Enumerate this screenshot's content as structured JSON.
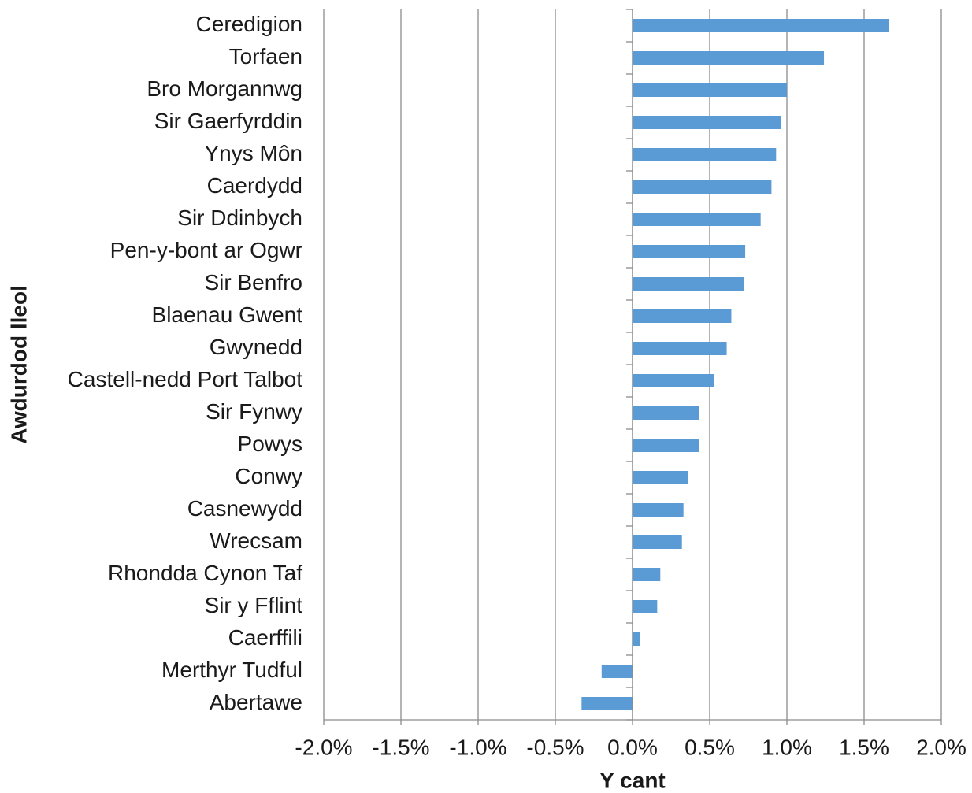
{
  "chart_data": {
    "type": "bar",
    "orientation": "horizontal",
    "x_label": "Y cant",
    "y_label": "Awdurdod lleol",
    "categories": [
      "Ceredigion",
      "Torfaen",
      "Bro Morgannwg",
      "Sir Gaerfyrddin",
      "Ynys Môn",
      "Caerdydd",
      "Sir Ddinbych",
      "Pen-y-bont ar Ogwr",
      "Sir Benfro",
      "Blaenau Gwent",
      "Gwynedd",
      "Castell-nedd Port Talbot",
      "Sir Fynwy",
      "Powys",
      "Conwy",
      "Casnewydd",
      "Wrecsam",
      "Rhondda Cynon Taf",
      "Sir y Fflint",
      "Caerffili",
      "Merthyr Tudful",
      "Abertawe"
    ],
    "values": [
      1.66,
      1.24,
      1.0,
      0.96,
      0.93,
      0.9,
      0.83,
      0.73,
      0.72,
      0.64,
      0.61,
      0.53,
      0.43,
      0.43,
      0.36,
      0.33,
      0.32,
      0.18,
      0.16,
      0.05,
      -0.2,
      -0.33
    ],
    "color": "#5b9bd5",
    "xlim": [
      -2.0,
      2.0
    ],
    "xticks": [
      {
        "value": -2.0,
        "label": "-2.0%"
      },
      {
        "value": -1.5,
        "label": "-1.5%"
      },
      {
        "value": -1.0,
        "label": "-1.0%"
      },
      {
        "value": -0.5,
        "label": "-0.5%"
      },
      {
        "value": 0.0,
        "label": "0.0%"
      },
      {
        "value": 0.5,
        "label": "0.5%"
      },
      {
        "value": 1.0,
        "label": "1.0%"
      },
      {
        "value": 1.5,
        "label": "1.5%"
      },
      {
        "value": 2.0,
        "label": "2.0%"
      }
    ],
    "grid": true
  }
}
